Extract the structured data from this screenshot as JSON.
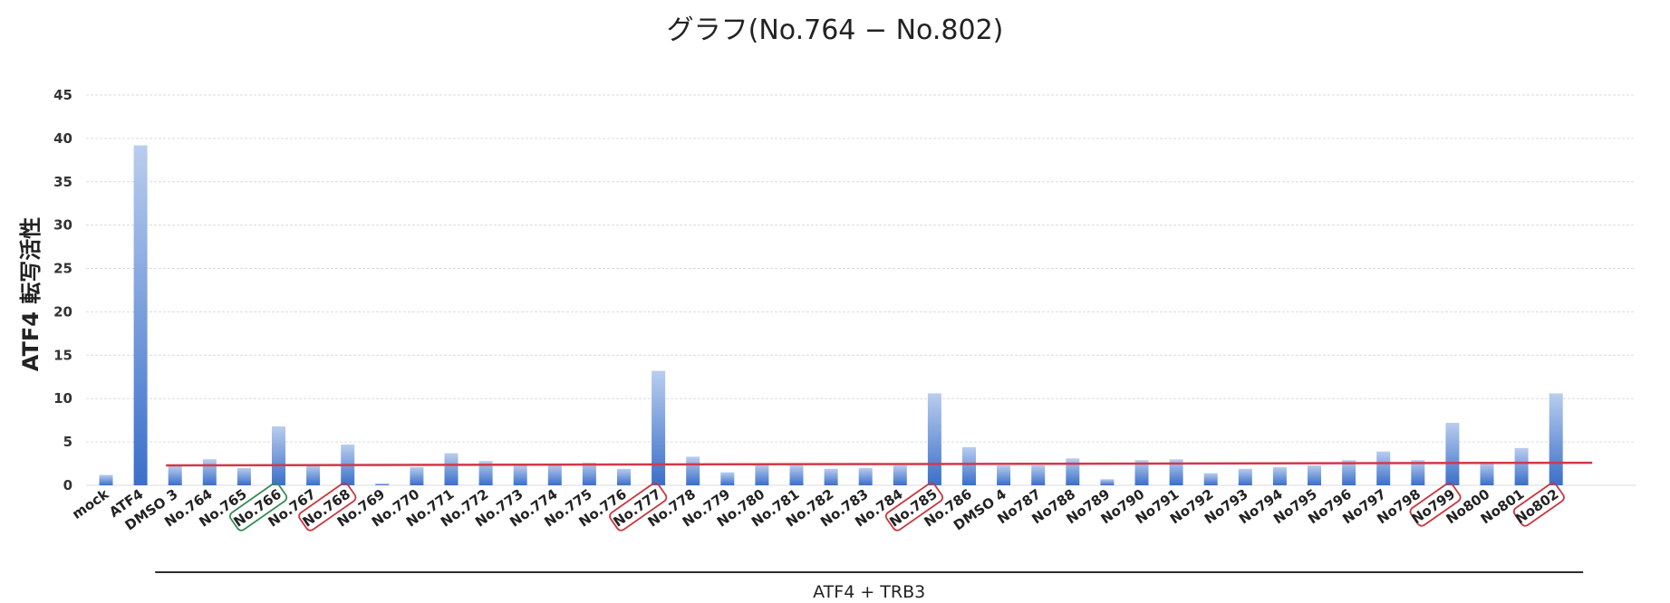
{
  "chart_data": {
    "type": "bar",
    "title": "グラフ(No.764 − No.802)",
    "ylabel": "ATF4 転写活性",
    "xlabel": "",
    "ylim": [
      0,
      45
    ],
    "yticks": [
      0,
      5,
      10,
      15,
      20,
      25,
      30,
      35,
      40,
      45
    ],
    "grid": true,
    "categories": [
      "mock",
      "ATF4",
      "DMSO 3",
      "No.764",
      "No.765",
      "No.766",
      "No.767",
      "No.768",
      "No.769",
      "No.770",
      "No.771",
      "No.772",
      "No.773",
      "No.774",
      "No.775",
      "No.776",
      "No.777",
      "No.778",
      "No.779",
      "No.780",
      "No.781",
      "No.782",
      "No.783",
      "No.784",
      "No.785",
      "No.786",
      "DMSO 4",
      "No787",
      "No788",
      "No789",
      "No790",
      "No791",
      "No792",
      "No793",
      "No794",
      "No795",
      "No796",
      "No797",
      "No798",
      "No799",
      "No800",
      "No801",
      "No802"
    ],
    "values": [
      1.2,
      39.2,
      2.2,
      3.0,
      2.0,
      6.8,
      2.3,
      4.7,
      0.2,
      2.1,
      3.7,
      2.8,
      2.3,
      2.4,
      2.6,
      1.9,
      13.2,
      3.3,
      1.5,
      2.4,
      2.3,
      1.9,
      2.0,
      2.3,
      10.6,
      4.4,
      2.3,
      2.3,
      3.1,
      0.7,
      2.9,
      3.0,
      1.4,
      1.9,
      2.1,
      2.3,
      2.9,
      3.9,
      2.9,
      7.2,
      2.6,
      4.3,
      10.6
    ],
    "reference_line": {
      "from": 2.3,
      "to": 2.6,
      "color": "#d2384b"
    },
    "group_bracket": {
      "label": "ATF4 + TRB3",
      "from_category": "DMSO 3",
      "to_category": "No802"
    },
    "highlighted": [
      {
        "category": "No.766",
        "color": "#3a8a5a"
      },
      {
        "category": "No.768",
        "color": "#c8383f"
      },
      {
        "category": "No.777",
        "color": "#c8383f"
      },
      {
        "category": "No.785",
        "color": "#c8383f"
      },
      {
        "category": "No799",
        "color": "#c8383f"
      },
      {
        "category": "No802",
        "color": "#c8383f"
      }
    ],
    "colors": {
      "bar_top": "#b9cdee",
      "bar_bottom": "#3b6fc9",
      "grid": "#dcdcdc"
    }
  }
}
